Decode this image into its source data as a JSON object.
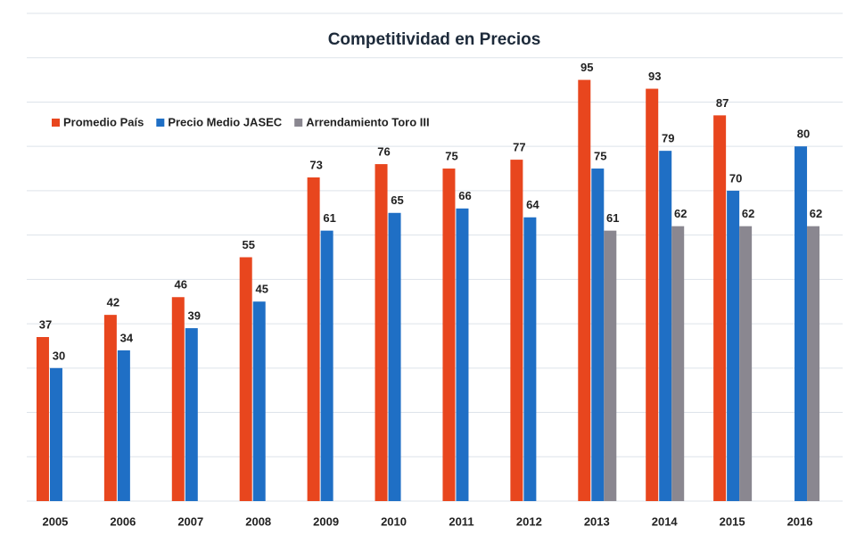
{
  "chart_data": {
    "type": "bar",
    "title": "Competitividad en Precios",
    "categories": [
      "2005",
      "2006",
      "2007",
      "2008",
      "2009",
      "2010",
      "2011",
      "2012",
      "2013",
      "2014",
      "2015",
      "2016"
    ],
    "series": [
      {
        "name": "Promedio País",
        "color": "#e8461e",
        "values": [
          37,
          42,
          46,
          55,
          73,
          76,
          75,
          77,
          95,
          93,
          87,
          null
        ]
      },
      {
        "name": "Precio Medio JASEC",
        "color": "#1f6fc5",
        "values": [
          30,
          34,
          39,
          45,
          61,
          65,
          66,
          64,
          75,
          79,
          70,
          80
        ]
      },
      {
        "name": "Arrendamiento Toro III",
        "color": "#8a8790",
        "values": [
          null,
          null,
          null,
          null,
          null,
          null,
          null,
          null,
          61,
          62,
          62,
          62
        ]
      }
    ],
    "ylim": [
      0,
      110
    ],
    "yticks": [
      0,
      10,
      20,
      30,
      40,
      50,
      60,
      70,
      80,
      90,
      100,
      110
    ],
    "grid": true,
    "legend": "top-left"
  }
}
